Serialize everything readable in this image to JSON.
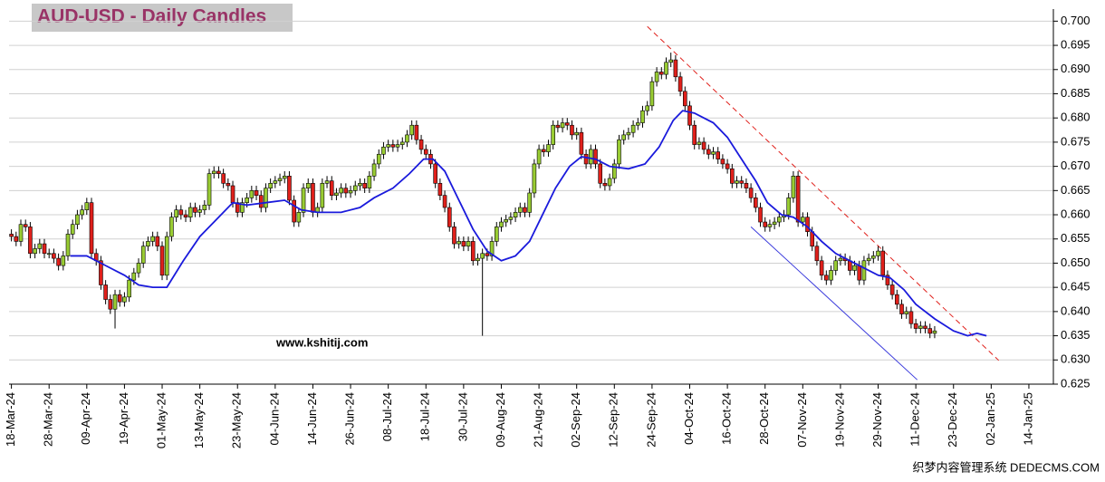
{
  "chart_data": {
    "type": "candlestick",
    "title": "AUD-USD - Daily Candles",
    "annotations": [
      {
        "text": "www.kshitij.com",
        "color": "#1010d0"
      },
      {
        "text": "织梦内容管理系统 DEDECMS.COM",
        "color": "#555555"
      }
    ],
    "up_color": "#99cc33",
    "down_color": "#e0201b",
    "grid": true,
    "open": [
      0.656,
      0.6555,
      0.6545,
      0.658,
      0.6575,
      0.652,
      0.653,
      0.654,
      0.652,
      0.652,
      0.651,
      0.6495,
      0.6515,
      0.656,
      0.658,
      0.66,
      0.661,
      0.6625,
      0.652,
      0.6505,
      0.6455,
      0.6425,
      0.6405,
      0.6435,
      0.642,
      0.643,
      0.6465,
      0.648,
      0.65,
      0.6535,
      0.6545,
      0.6555,
      0.6535,
      0.6475,
      0.6555,
      0.6595,
      0.661,
      0.66,
      0.6595,
      0.6615,
      0.6605,
      0.661,
      0.662,
      0.6685,
      0.669,
      0.6685,
      0.6665,
      0.666,
      0.6625,
      0.6605,
      0.6625,
      0.6635,
      0.665,
      0.664,
      0.6615,
      0.6655,
      0.6665,
      0.667,
      0.6675,
      0.668,
      0.663,
      0.6585,
      0.6605,
      0.6655,
      0.6665,
      0.6605,
      0.6615,
      0.6665,
      0.667,
      0.664,
      0.6645,
      0.6655,
      0.6645,
      0.665,
      0.666,
      0.6665,
      0.6655,
      0.668,
      0.6705,
      0.6725,
      0.674,
      0.6745,
      0.674,
      0.6745,
      0.675,
      0.6765,
      0.6785,
      0.6755,
      0.6735,
      0.6725,
      0.6705,
      0.6665,
      0.664,
      0.6615,
      0.6575,
      0.654,
      0.6545,
      0.6535,
      0.6545,
      0.6505,
      0.651,
      0.652,
      0.6515,
      0.6545,
      0.6575,
      0.6585,
      0.659,
      0.6595,
      0.6605,
      0.6615,
      0.6605,
      0.6645,
      0.6705,
      0.6735,
      0.673,
      0.6745,
      0.6785,
      0.678,
      0.679,
      0.6785,
      0.6765,
      0.677,
      0.6725,
      0.6705,
      0.6735,
      0.6705,
      0.6665,
      0.666,
      0.6675,
      0.6705,
      0.6755,
      0.6765,
      0.677,
      0.6785,
      0.679,
      0.6815,
      0.6825,
      0.6875,
      0.6895,
      0.689,
      0.6915,
      0.692,
      0.6885,
      0.6855,
      0.6825,
      0.6785,
      0.6745,
      0.675,
      0.6735,
      0.6725,
      0.673,
      0.6715,
      0.6705,
      0.6695,
      0.6665,
      0.667,
      0.6665,
      0.6655,
      0.6635,
      0.6615,
      0.6585,
      0.6575,
      0.658,
      0.6585,
      0.6595,
      0.66,
      0.6635,
      0.668,
      0.6585,
      0.6595,
      0.6565,
      0.6535,
      0.6505,
      0.6475,
      0.6465,
      0.6485,
      0.6505,
      0.651,
      0.6505,
      0.6485,
      0.6495,
      0.6465,
      0.6505,
      0.651,
      0.6515,
      0.6525,
      0.6475,
      0.6455,
      0.6435,
      0.6415,
      0.6395,
      0.64,
      0.6375,
      0.6365,
      0.637,
      0.6365,
      0.6355
    ],
    "high": [
      0.657,
      0.6565,
      0.659,
      0.659,
      0.6585,
      0.654,
      0.655,
      0.655,
      0.653,
      0.653,
      0.652,
      0.6525,
      0.657,
      0.659,
      0.661,
      0.662,
      0.6635,
      0.6635,
      0.653,
      0.6515,
      0.6465,
      0.6435,
      0.6445,
      0.6445,
      0.644,
      0.6475,
      0.649,
      0.651,
      0.6545,
      0.6555,
      0.6565,
      0.6565,
      0.6545,
      0.6565,
      0.6605,
      0.662,
      0.662,
      0.661,
      0.6625,
      0.6625,
      0.662,
      0.663,
      0.6695,
      0.67,
      0.67,
      0.6695,
      0.6675,
      0.667,
      0.6635,
      0.6635,
      0.6645,
      0.666,
      0.666,
      0.665,
      0.6665,
      0.6675,
      0.668,
      0.6685,
      0.669,
      0.669,
      0.664,
      0.6615,
      0.6665,
      0.6675,
      0.6675,
      0.6625,
      0.6675,
      0.668,
      0.668,
      0.6655,
      0.6665,
      0.6665,
      0.666,
      0.667,
      0.6675,
      0.6675,
      0.669,
      0.6715,
      0.6735,
      0.675,
      0.6755,
      0.6755,
      0.6755,
      0.676,
      0.6775,
      0.6795,
      0.6795,
      0.6765,
      0.6745,
      0.6735,
      0.6715,
      0.6675,
      0.665,
      0.6625,
      0.6585,
      0.6555,
      0.6555,
      0.6555,
      0.6555,
      0.652,
      0.653,
      0.653,
      0.6555,
      0.6585,
      0.6595,
      0.66,
      0.6605,
      0.6615,
      0.6625,
      0.6625,
      0.6655,
      0.6715,
      0.6745,
      0.6745,
      0.6755,
      0.6795,
      0.6795,
      0.68,
      0.68,
      0.6795,
      0.678,
      0.678,
      0.6735,
      0.6745,
      0.6745,
      0.6715,
      0.6675,
      0.6685,
      0.6715,
      0.6765,
      0.6775,
      0.678,
      0.6795,
      0.68,
      0.6825,
      0.6835,
      0.6885,
      0.6905,
      0.6905,
      0.6925,
      0.6935,
      0.693,
      0.6895,
      0.6865,
      0.6835,
      0.6795,
      0.676,
      0.676,
      0.6745,
      0.674,
      0.674,
      0.6725,
      0.6715,
      0.6705,
      0.668,
      0.668,
      0.6675,
      0.6665,
      0.6645,
      0.6625,
      0.6595,
      0.659,
      0.6595,
      0.6605,
      0.661,
      0.6645,
      0.669,
      0.669,
      0.6605,
      0.6605,
      0.6575,
      0.6545,
      0.6515,
      0.6485,
      0.6495,
      0.6515,
      0.652,
      0.652,
      0.6515,
      0.6505,
      0.6505,
      0.6515,
      0.652,
      0.6525,
      0.6535,
      0.6535,
      0.6485,
      0.6465,
      0.6445,
      0.6425,
      0.641,
      0.641,
      0.6385,
      0.638,
      0.638,
      0.6375,
      0.637
    ],
    "low": [
      0.6545,
      0.6535,
      0.6535,
      0.6565,
      0.651,
      0.651,
      0.652,
      0.651,
      0.651,
      0.65,
      0.6485,
      0.6485,
      0.6505,
      0.655,
      0.657,
      0.659,
      0.66,
      0.651,
      0.6495,
      0.6445,
      0.6415,
      0.6395,
      0.6365,
      0.641,
      0.641,
      0.642,
      0.6455,
      0.647,
      0.649,
      0.6525,
      0.6535,
      0.6525,
      0.6465,
      0.6465,
      0.6545,
      0.6585,
      0.659,
      0.6585,
      0.6585,
      0.6595,
      0.6595,
      0.66,
      0.661,
      0.6675,
      0.6675,
      0.6655,
      0.665,
      0.6615,
      0.6595,
      0.6595,
      0.6615,
      0.6625,
      0.663,
      0.6605,
      0.6605,
      0.6645,
      0.6655,
      0.666,
      0.6665,
      0.662,
      0.6575,
      0.6575,
      0.6595,
      0.6645,
      0.6595,
      0.6595,
      0.6605,
      0.6655,
      0.663,
      0.663,
      0.6635,
      0.6635,
      0.6635,
      0.664,
      0.665,
      0.6645,
      0.6645,
      0.667,
      0.6695,
      0.6715,
      0.673,
      0.673,
      0.673,
      0.6735,
      0.674,
      0.6755,
      0.6745,
      0.6725,
      0.6715,
      0.6695,
      0.6655,
      0.663,
      0.6605,
      0.6565,
      0.653,
      0.653,
      0.6525,
      0.6525,
      0.6495,
      0.6495,
      0.635,
      0.6505,
      0.6505,
      0.6535,
      0.6565,
      0.6575,
      0.658,
      0.6585,
      0.6595,
      0.6595,
      0.6595,
      0.6635,
      0.6695,
      0.672,
      0.672,
      0.6735,
      0.677,
      0.677,
      0.6775,
      0.6755,
      0.6755,
      0.6715,
      0.6695,
      0.6695,
      0.6695,
      0.6655,
      0.665,
      0.665,
      0.6665,
      0.6695,
      0.6745,
      0.6755,
      0.676,
      0.6775,
      0.678,
      0.6805,
      0.6815,
      0.6865,
      0.688,
      0.688,
      0.6905,
      0.6875,
      0.6845,
      0.6815,
      0.6775,
      0.6735,
      0.6735,
      0.6725,
      0.6715,
      0.6715,
      0.6705,
      0.6695,
      0.6685,
      0.6655,
      0.6655,
      0.6655,
      0.6645,
      0.6625,
      0.6605,
      0.6575,
      0.6565,
      0.6565,
      0.657,
      0.6575,
      0.6585,
      0.659,
      0.6625,
      0.6575,
      0.6575,
      0.6555,
      0.6525,
      0.6495,
      0.6465,
      0.6455,
      0.6455,
      0.6475,
      0.6495,
      0.6495,
      0.6475,
      0.6475,
      0.6455,
      0.6455,
      0.6495,
      0.65,
      0.6505,
      0.6465,
      0.6445,
      0.6425,
      0.6405,
      0.6385,
      0.6385,
      0.6365,
      0.6355,
      0.6355,
      0.6355,
      0.6345,
      0.6345
    ],
    "close": [
      0.6555,
      0.6545,
      0.658,
      0.6575,
      0.652,
      0.653,
      0.654,
      0.652,
      0.652,
      0.651,
      0.6495,
      0.6515,
      0.656,
      0.658,
      0.66,
      0.661,
      0.6625,
      0.652,
      0.6505,
      0.6455,
      0.6425,
      0.6405,
      0.6435,
      0.642,
      0.643,
      0.6465,
      0.648,
      0.65,
      0.6535,
      0.6545,
      0.6555,
      0.6535,
      0.6475,
      0.6555,
      0.6595,
      0.661,
      0.66,
      0.6595,
      0.6615,
      0.6605,
      0.661,
      0.662,
      0.6685,
      0.669,
      0.6685,
      0.6665,
      0.666,
      0.6625,
      0.6605,
      0.6625,
      0.6635,
      0.665,
      0.664,
      0.6615,
      0.6655,
      0.6665,
      0.667,
      0.6675,
      0.668,
      0.663,
      0.6585,
      0.6605,
      0.6655,
      0.6665,
      0.6605,
      0.6615,
      0.6665,
      0.667,
      0.664,
      0.6645,
      0.6655,
      0.6645,
      0.665,
      0.666,
      0.6665,
      0.6655,
      0.668,
      0.6705,
      0.6725,
      0.674,
      0.6745,
      0.674,
      0.6745,
      0.675,
      0.6765,
      0.6785,
      0.6755,
      0.6735,
      0.6725,
      0.6705,
      0.6665,
      0.664,
      0.6615,
      0.6575,
      0.654,
      0.6545,
      0.6535,
      0.6545,
      0.6505,
      0.651,
      0.652,
      0.6515,
      0.6545,
      0.6575,
      0.6585,
      0.659,
      0.6595,
      0.6605,
      0.6615,
      0.6605,
      0.6645,
      0.6705,
      0.6735,
      0.673,
      0.6745,
      0.6785,
      0.678,
      0.679,
      0.6785,
      0.6765,
      0.677,
      0.6725,
      0.6705,
      0.6735,
      0.6705,
      0.6665,
      0.666,
      0.6675,
      0.6705,
      0.6755,
      0.6765,
      0.677,
      0.6785,
      0.679,
      0.6815,
      0.6825,
      0.6875,
      0.6895,
      0.689,
      0.6915,
      0.692,
      0.6885,
      0.6855,
      0.6825,
      0.6785,
      0.6745,
      0.675,
      0.6735,
      0.6725,
      0.673,
      0.6715,
      0.6705,
      0.6695,
      0.6665,
      0.667,
      0.6665,
      0.6655,
      0.6635,
      0.6615,
      0.6585,
      0.6575,
      0.658,
      0.6585,
      0.6595,
      0.66,
      0.6635,
      0.668,
      0.6585,
      0.6595,
      0.6565,
      0.6535,
      0.6505,
      0.6475,
      0.6465,
      0.6485,
      0.6505,
      0.651,
      0.6505,
      0.6485,
      0.6495,
      0.6465,
      0.6505,
      0.651,
      0.6515,
      0.6525,
      0.6475,
      0.6455,
      0.6435,
      0.6415,
      0.6395,
      0.64,
      0.6375,
      0.6365,
      0.637,
      0.6365,
      0.6355,
      0.636
    ],
    "moving_average": {
      "color": "#1a1adc",
      "x": [
        12.5,
        16,
        20,
        24,
        27,
        30,
        33,
        36.5,
        40,
        44,
        47,
        50,
        54,
        58,
        61.5,
        65,
        70,
        74,
        77,
        81,
        84.5,
        87.5,
        89.5,
        92,
        95,
        98,
        101,
        104,
        107,
        110,
        112.5,
        115.5,
        118.5,
        121,
        124,
        127,
        131,
        134.5,
        137.5,
        140.5,
        142.5,
        145,
        149,
        152,
        155,
        158,
        160.5,
        163.5,
        166,
        169,
        172,
        175,
        178,
        181,
        184,
        186.5,
        189.5,
        192,
        196,
        200,
        203,
        205,
        207
      ],
      "values": [
        0.6515,
        0.6515,
        0.6495,
        0.6475,
        0.6455,
        0.645,
        0.645,
        0.6505,
        0.6555,
        0.6595,
        0.6625,
        0.662,
        0.6625,
        0.663,
        0.661,
        0.6605,
        0.6605,
        0.6615,
        0.6635,
        0.6655,
        0.6685,
        0.6715,
        0.6715,
        0.669,
        0.663,
        0.657,
        0.6525,
        0.6505,
        0.6515,
        0.6545,
        0.6595,
        0.6655,
        0.67,
        0.672,
        0.6715,
        0.67,
        0.6695,
        0.6705,
        0.674,
        0.6795,
        0.6815,
        0.681,
        0.679,
        0.676,
        0.6715,
        0.667,
        0.6625,
        0.66,
        0.6595,
        0.6575,
        0.6545,
        0.652,
        0.6505,
        0.649,
        0.6475,
        0.647,
        0.6445,
        0.6415,
        0.6385,
        0.636,
        0.635,
        0.6355,
        0.635
      ]
    },
    "trendlines": [
      {
        "color": "#e0201b",
        "dashed": true,
        "x": [
          135,
          209.6
        ],
        "values": [
          0.6989,
          0.6299
        ]
      },
      {
        "color": "#3a3adc",
        "dashed": false,
        "x": [
          157,
          192.3
        ],
        "values": [
          0.6575,
          0.6259
        ]
      }
    ],
    "xlim": [
      -0.5,
      221.2
    ],
    "ylim": [
      0.625,
      0.7025
    ],
    "yticks": [
      {
        "value": 0.625,
        "label": "0.625"
      },
      {
        "value": 0.63,
        "label": "0.630"
      },
      {
        "value": 0.635,
        "label": "0.635"
      },
      {
        "value": 0.64,
        "label": "0.640"
      },
      {
        "value": 0.645,
        "label": "0.645"
      },
      {
        "value": 0.65,
        "label": "0.650"
      },
      {
        "value": 0.655,
        "label": "0.655"
      },
      {
        "value": 0.66,
        "label": "0.660"
      },
      {
        "value": 0.665,
        "label": "0.665"
      },
      {
        "value": 0.67,
        "label": "0.670"
      },
      {
        "value": 0.675,
        "label": "0.675"
      },
      {
        "value": 0.68,
        "label": "0.680"
      },
      {
        "value": 0.685,
        "label": "0.685"
      },
      {
        "value": 0.69,
        "label": "0.690"
      },
      {
        "value": 0.695,
        "label": "0.695"
      },
      {
        "value": 0.7,
        "label": "0.700"
      }
    ],
    "xticks": [
      {
        "value": 0,
        "label": "18-Mar-24"
      },
      {
        "value": 8,
        "label": "28-Mar-24"
      },
      {
        "value": 16,
        "label": "09-Apr-24"
      },
      {
        "value": 24,
        "label": "19-Apr-24"
      },
      {
        "value": 32,
        "label": "01-May-24"
      },
      {
        "value": 40,
        "label": "13-May-24"
      },
      {
        "value": 48,
        "label": "23-May-24"
      },
      {
        "value": 56,
        "label": "04-Jun-24"
      },
      {
        "value": 64,
        "label": "14-Jun-24"
      },
      {
        "value": 72,
        "label": "26-Jun-24"
      },
      {
        "value": 80,
        "label": "08-Jul-24"
      },
      {
        "value": 88,
        "label": "18-Jul-24"
      },
      {
        "value": 96,
        "label": "30-Jul-24"
      },
      {
        "value": 104,
        "label": "09-Aug-24"
      },
      {
        "value": 112,
        "label": "21-Aug-24"
      },
      {
        "value": 120,
        "label": "02-Sep-24"
      },
      {
        "value": 128,
        "label": "12-Sep-24"
      },
      {
        "value": 136,
        "label": "24-Sep-24"
      },
      {
        "value": 144,
        "label": "04-Oct-24"
      },
      {
        "value": 152,
        "label": "16-Oct-24"
      },
      {
        "value": 160,
        "label": "28-Oct-24"
      },
      {
        "value": 168,
        "label": "07-Nov-24"
      },
      {
        "value": 176,
        "label": "19-Nov-24"
      },
      {
        "value": 184,
        "label": "29-Nov-24"
      },
      {
        "value": 192,
        "label": "11-Dec-24"
      },
      {
        "value": 200,
        "label": "23-Dec-24"
      },
      {
        "value": 208,
        "label": "02-Jan-25"
      },
      {
        "value": 216,
        "label": "14-Jan-25"
      }
    ]
  }
}
